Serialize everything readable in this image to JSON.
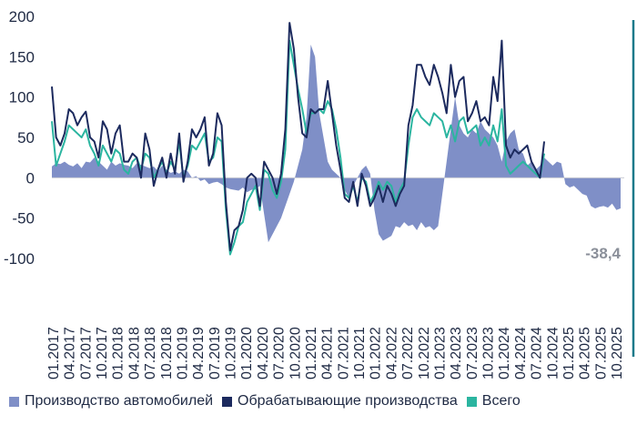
{
  "chart_data": {
    "type": "line",
    "title": "",
    "xlabel": "",
    "ylabel": "",
    "ylim": [
      -100,
      200
    ],
    "yticks": [
      200,
      150,
      100,
      50,
      0,
      -50,
      -100
    ],
    "x_tick_labels": [
      "01.2017",
      "04.2017",
      "07.2017",
      "10.2017",
      "01.2018",
      "04.2018",
      "07.2018",
      "10.2018",
      "01.2019",
      "04.2019",
      "07.2019",
      "10.2019",
      "01.2020",
      "04.2020",
      "07.2020",
      "10.2020",
      "01.2021",
      "04.2021",
      "07.2021",
      "10.2021",
      "01.2022",
      "04.2022",
      "07.2022",
      "10.2022",
      "01.2023",
      "04.2023",
      "07.2023",
      "10.2023",
      "01.2024",
      "04.2024",
      "07.2024",
      "10.2024",
      "01.2025",
      "04.2025",
      "07.2025",
      "10.2025"
    ],
    "annotation": "-38,4",
    "series": [
      {
        "name": "Производство автомобилей",
        "kind": "area",
        "color": "#7f8fc7",
        "values": [
          14,
          18,
          17,
          20,
          16,
          14,
          18,
          12,
          20,
          19,
          25,
          20,
          15,
          10,
          20,
          15,
          18,
          16,
          15,
          12,
          18,
          16,
          14,
          12,
          14,
          8,
          15,
          10,
          6,
          8,
          5,
          10,
          8,
          0,
          2,
          -4,
          -2,
          -8,
          -6,
          -5,
          -8,
          -12,
          -14,
          -15,
          -16,
          -12,
          -18,
          -15,
          -14,
          -10,
          -45,
          -80,
          -70,
          -60,
          -50,
          -35,
          -20,
          -5,
          15,
          35,
          75,
          165,
          150,
          80,
          50,
          20,
          10,
          5,
          0,
          -15,
          -25,
          -10,
          0,
          10,
          15,
          5,
          -40,
          -70,
          -78,
          -75,
          -72,
          -60,
          -62,
          -55,
          -60,
          -58,
          -65,
          -55,
          -62,
          -60,
          -65,
          -60,
          -20,
          20,
          60,
          100,
          65,
          55,
          50,
          60,
          55,
          70,
          60,
          55,
          50,
          40,
          20,
          45,
          55,
          60,
          35,
          30,
          15,
          20,
          10,
          15,
          25,
          20,
          15,
          20,
          18,
          -8,
          -12,
          -10,
          -15,
          -20,
          -22,
          -35,
          -38,
          -36,
          -35,
          -37,
          -32,
          -40,
          -38
        ]
      },
      {
        "name": "Обрабатывающие производства",
        "kind": "line",
        "color": "#1c2a5e",
        "values": [
          113,
          50,
          40,
          55,
          85,
          80,
          65,
          75,
          82,
          50,
          45,
          25,
          70,
          60,
          30,
          55,
          65,
          20,
          20,
          30,
          25,
          0,
          55,
          35,
          -10,
          10,
          25,
          0,
          30,
          5,
          55,
          -5,
          20,
          60,
          50,
          60,
          75,
          15,
          30,
          80,
          65,
          -30,
          -90,
          -65,
          -60,
          -40,
          0,
          5,
          0,
          -35,
          20,
          10,
          0,
          -20,
          5,
          60,
          192,
          160,
          100,
          55,
          50,
          85,
          80,
          85,
          85,
          120,
          80,
          40,
          10,
          -25,
          -30,
          -5,
          -35,
          5,
          -10,
          -35,
          -25,
          -10,
          -30,
          -10,
          -20,
          -35,
          -20,
          -10,
          65,
          90,
          140,
          140,
          125,
          115,
          140,
          125,
          105,
          80,
          140,
          100,
          120,
          125,
          70,
          80,
          95,
          70,
          75,
          65,
          125,
          95,
          170,
          40,
          25,
          35,
          30,
          35,
          40,
          20,
          10,
          0,
          45
        ]
      },
      {
        "name": "Всего",
        "kind": "line",
        "color": "#2bb5a0",
        "values": [
          70,
          15,
          30,
          45,
          65,
          60,
          55,
          50,
          60,
          40,
          30,
          15,
          40,
          30,
          20,
          35,
          30,
          10,
          5,
          20,
          25,
          10,
          30,
          25,
          0,
          10,
          20,
          5,
          20,
          10,
          45,
          0,
          15,
          40,
          35,
          45,
          55,
          20,
          25,
          50,
          45,
          -40,
          -95,
          -80,
          -60,
          -55,
          -30,
          -20,
          -10,
          -40,
          10,
          5,
          -15,
          -25,
          -5,
          35,
          170,
          140,
          110,
          85,
          55,
          80,
          80,
          85,
          80,
          95,
          85,
          60,
          25,
          -20,
          -25,
          -10,
          -30,
          0,
          -5,
          -30,
          -20,
          -5,
          -15,
          -5,
          -10,
          -30,
          -15,
          -5,
          40,
          75,
          85,
          75,
          70,
          65,
          80,
          75,
          70,
          50,
          65,
          45,
          70,
          75,
          55,
          60,
          65,
          40,
          50,
          40,
          65,
          45,
          85,
          15,
          5,
          10,
          15,
          20,
          15,
          10,
          5,
          0,
          30
        ]
      }
    ]
  },
  "legend": {
    "item1": "Производство автомобилей",
    "item2": "Обрабатывающие производства",
    "item3": "Всего"
  }
}
